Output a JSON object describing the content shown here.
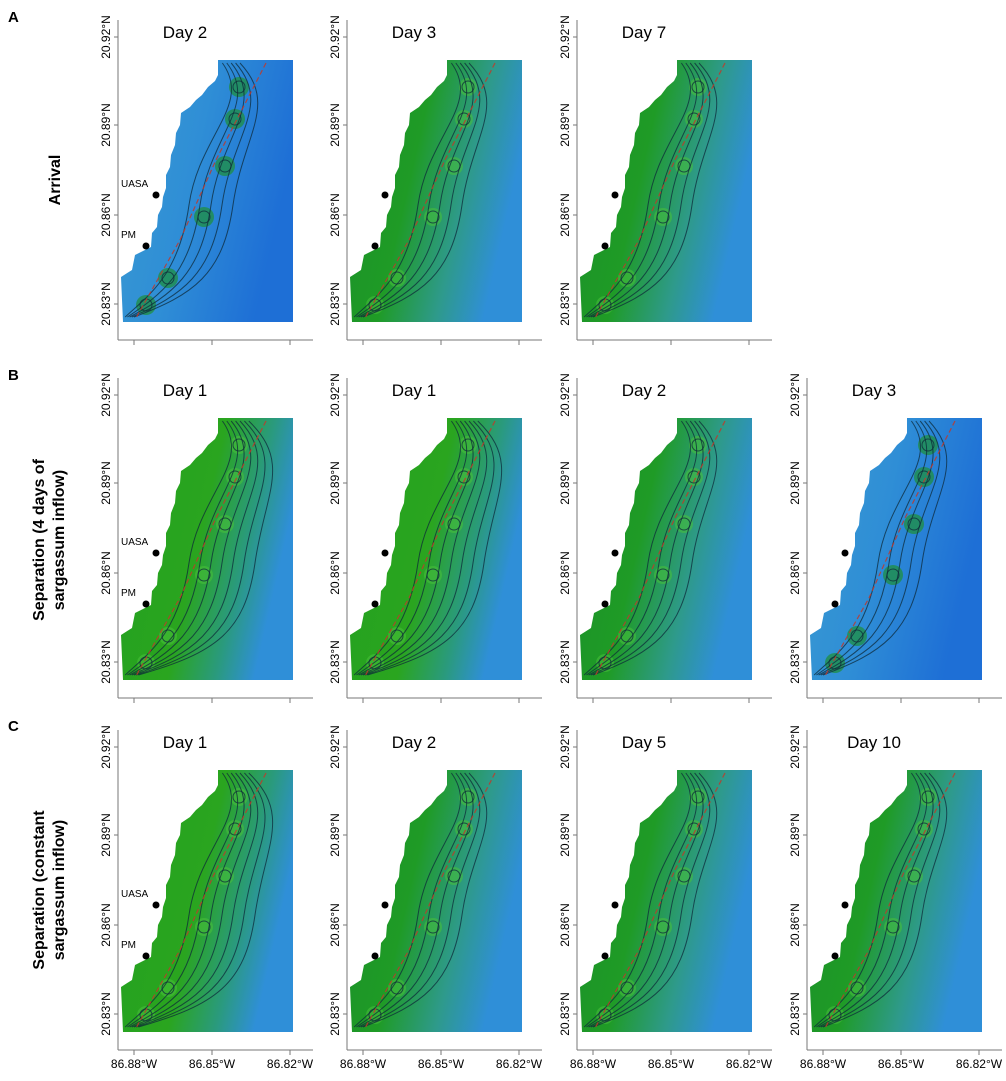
{
  "rows": [
    {
      "letter": "A",
      "label_lines": [
        "Arrival"
      ],
      "panels": [
        {
          "title": "Day 2",
          "sargassum_coverage": "low",
          "shows_site_labels": true
        },
        {
          "title": "Day 3",
          "sargassum_coverage": "medium"
        },
        {
          "title": "Day 7",
          "sargassum_coverage": "medium"
        }
      ]
    },
    {
      "letter": "B",
      "label_lines": [
        "Separation (4 days of",
        "sargassum inflow)"
      ],
      "panels": [
        {
          "title": "Day 1",
          "sargassum_coverage": "high",
          "shows_site_labels": true
        },
        {
          "title": "Day 1",
          "sargassum_coverage": "high"
        },
        {
          "title": "Day 2",
          "sargassum_coverage": "medium"
        },
        {
          "title": "Day 3",
          "sargassum_coverage": "low"
        }
      ]
    },
    {
      "letter": "C",
      "label_lines": [
        "Separation (constant",
        "sargassum inflow)"
      ],
      "panels": [
        {
          "title": "Day 1",
          "sargassum_coverage": "high",
          "shows_site_labels": true
        },
        {
          "title": "Day 2",
          "sargassum_coverage": "medium"
        },
        {
          "title": "Day 5",
          "sargassum_coverage": "medium"
        },
        {
          "title": "Day 10",
          "sargassum_coverage": "medium"
        }
      ]
    }
  ],
  "lat_ticks": [
    "20.92°N",
    "20.89°N",
    "20.86°N",
    "20.83°N"
  ],
  "lon_ticks": [
    "86.88°W",
    "86.85°W",
    "86.82°W"
  ],
  "sites": [
    {
      "name": "UASA"
    },
    {
      "name": "PM"
    }
  ],
  "colors": {
    "sea": "#2f8fd8",
    "sargassum_high": "#2aa51f",
    "sargassum_mid": "#168f25",
    "contour": "#0d2a3a",
    "shoreline": "#c0392b"
  }
}
